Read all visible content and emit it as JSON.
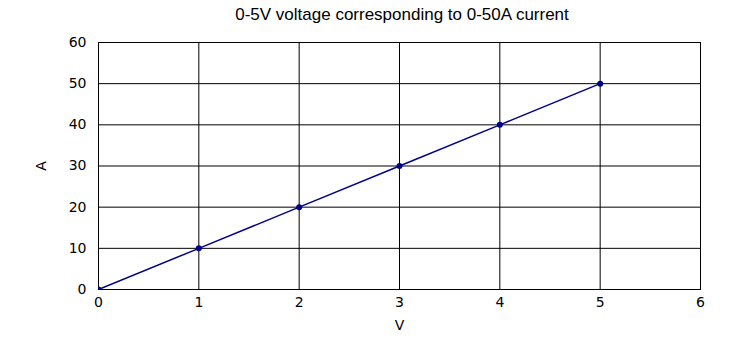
{
  "chart_data": {
    "type": "line",
    "title": "0-5V voltage corresponding to 0-50A current",
    "x_label": "V",
    "y_label": "A",
    "x": [
      0,
      1,
      2,
      3,
      4,
      5
    ],
    "values": [
      0,
      10,
      20,
      30,
      40,
      50
    ],
    "color": "#00008b",
    "marker": "circle",
    "line_style": "solid",
    "xlim": [
      0,
      6
    ],
    "xticks": [
      0,
      1,
      2,
      3,
      4,
      5,
      6
    ],
    "ylim": [
      0,
      60
    ],
    "yticks": [
      0,
      10,
      20,
      30,
      40,
      50,
      60
    ],
    "grid": true
  }
}
